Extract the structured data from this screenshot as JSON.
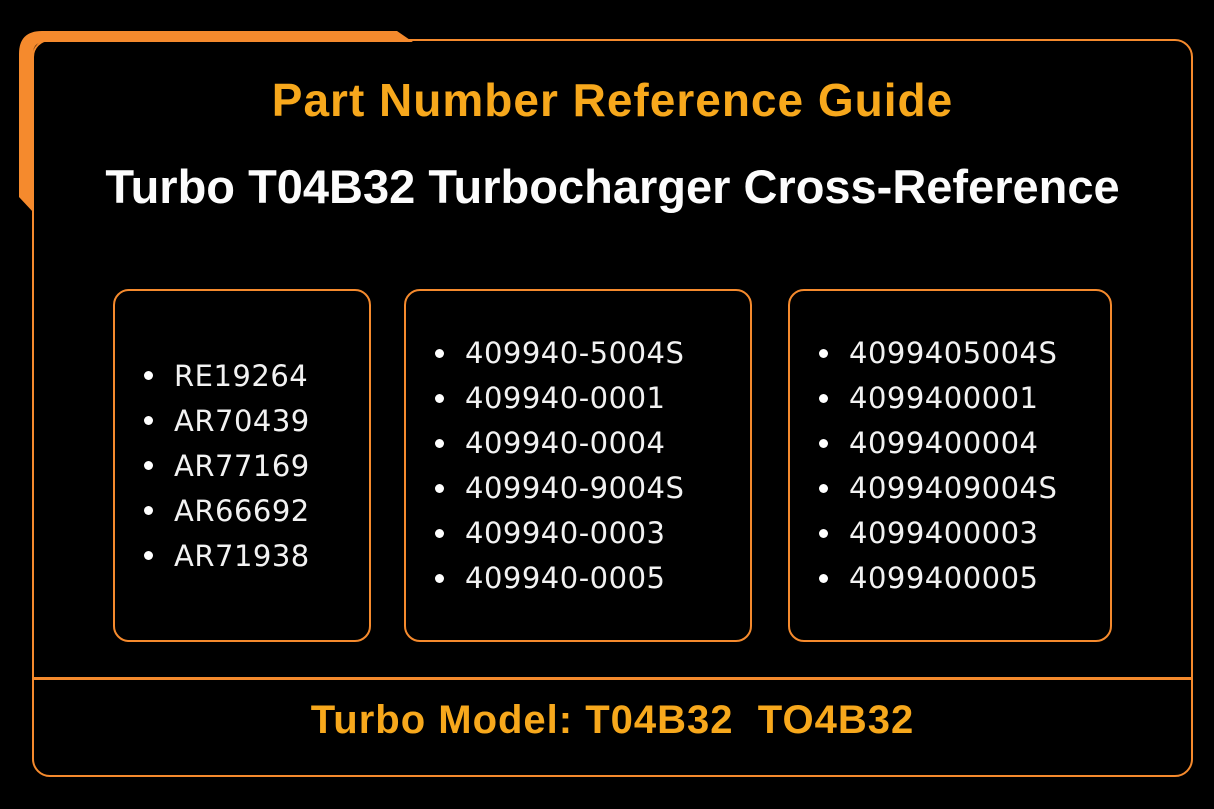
{
  "page": {
    "title": "Part Number Reference Guide",
    "subtitle": "Turbo T04B32 Turbocharger Cross-Reference",
    "footer": "Turbo Model: T04B32  TO4B32"
  },
  "boxes": [
    {
      "items": [
        "RE19264",
        "AR70439",
        "AR77169",
        "AR66692",
        "AR71938"
      ]
    },
    {
      "items": [
        "409940-5004S",
        "409940-0001",
        "409940-0004",
        "409940-9004S",
        "409940-0003",
        "409940-0005"
      ]
    },
    {
      "items": [
        "4099405004S",
        "4099400001",
        "4099400004",
        "4099409004S",
        "4099400003",
        "4099400005"
      ]
    }
  ],
  "icons": {
    "bullet": "round-dot"
  },
  "colors": {
    "accent_orange": "#F58A2D",
    "accent_amber": "#F7A81C",
    "text": "#F2F2F2",
    "background": "#000000"
  }
}
